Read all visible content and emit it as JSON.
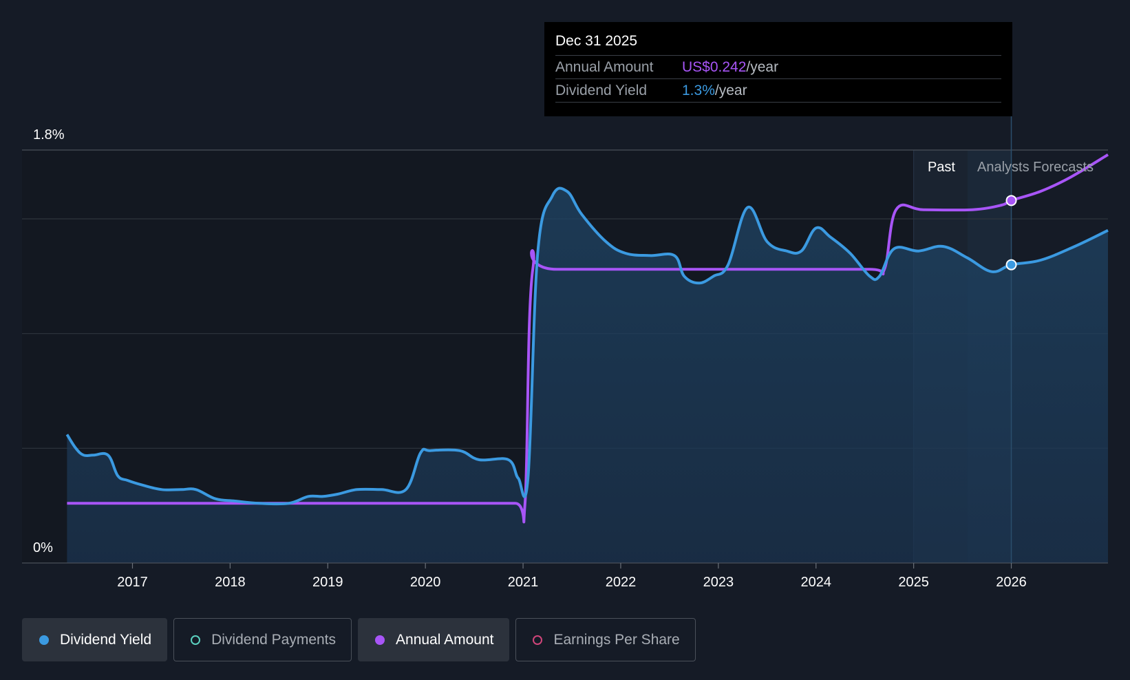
{
  "tooltip": {
    "date": "Dec 31 2025",
    "rows": [
      {
        "label": "Annual Amount",
        "value": "US$0.242",
        "unit": "/year",
        "color": "#a855f7"
      },
      {
        "label": "Dividend Yield",
        "value": "1.3%",
        "unit": "/year",
        "color": "#3b9ae1"
      }
    ]
  },
  "regions": {
    "past_label": "Past",
    "forecast_label": "Analysts Forecasts"
  },
  "legend": [
    {
      "label": "Dividend Yield",
      "color": "#3b9ae1",
      "active": true,
      "filled": true
    },
    {
      "label": "Dividend Payments",
      "color": "#5bd1c0",
      "active": false,
      "filled": false
    },
    {
      "label": "Annual Amount",
      "color": "#a855f7",
      "active": true,
      "filled": true
    },
    {
      "label": "Earnings Per Share",
      "color": "#d0457a",
      "active": false,
      "filled": false
    }
  ],
  "chart_data": {
    "type": "line",
    "y_tick_labels": [
      "1.8%",
      "0%"
    ],
    "ylim": [
      0,
      1.8
    ],
    "xlim": [
      2016.32,
      2026.99
    ],
    "x_tick_labels": [
      "2017",
      "2018",
      "2019",
      "2020",
      "2021",
      "2022",
      "2023",
      "2024",
      "2025",
      "2026"
    ],
    "x_ticks": [
      2017,
      2018,
      2019,
      2020,
      2021,
      2022,
      2023,
      2024,
      2025,
      2026
    ],
    "gridlines": [
      1.8,
      1.5,
      1.0,
      0.5
    ],
    "past_region_start": 2025.0,
    "forecast_region_start": 2025.55,
    "highlight_x": 2026.0,
    "colors": {
      "yield": "#3b9ae1",
      "annual": "#a855f7"
    },
    "series": [
      {
        "name": "Dividend Yield",
        "x": [
          2016.33,
          2016.42,
          2016.5,
          2016.6,
          2016.75,
          2016.85,
          2016.95,
          2017.1,
          2017.3,
          2017.5,
          2017.65,
          2017.85,
          2018.05,
          2018.3,
          2018.6,
          2018.8,
          2018.95,
          2019.1,
          2019.3,
          2019.55,
          2019.8,
          2019.95,
          2020.05,
          2020.35,
          2020.55,
          2020.85,
          2020.95,
          2021.05,
          2021.15,
          2021.3,
          2021.45,
          2021.6,
          2021.85,
          2022.05,
          2022.3,
          2022.55,
          2022.65,
          2022.8,
          2022.95,
          2023.1,
          2023.3,
          2023.5,
          2023.7,
          2023.85,
          2024.0,
          2024.15,
          2024.35,
          2024.55,
          2024.65,
          2024.8,
          2025.05,
          2025.3,
          2025.55,
          2025.8,
          2026.0,
          2026.3,
          2026.65,
          2026.99
        ],
        "values": [
          0.56,
          0.5,
          0.47,
          0.47,
          0.47,
          0.38,
          0.36,
          0.34,
          0.32,
          0.32,
          0.32,
          0.28,
          0.27,
          0.26,
          0.26,
          0.29,
          0.29,
          0.3,
          0.32,
          0.32,
          0.32,
          0.48,
          0.49,
          0.49,
          0.45,
          0.45,
          0.37,
          0.37,
          1.35,
          1.6,
          1.62,
          1.52,
          1.4,
          1.35,
          1.34,
          1.34,
          1.25,
          1.22,
          1.25,
          1.3,
          1.55,
          1.4,
          1.36,
          1.36,
          1.46,
          1.42,
          1.35,
          1.25,
          1.25,
          1.37,
          1.36,
          1.38,
          1.33,
          1.27,
          1.3,
          1.32,
          1.38,
          1.45
        ]
      },
      {
        "name": "Annual Amount",
        "x": [
          2016.33,
          2020.3,
          2020.92,
          2021.02,
          2021.1,
          2021.35,
          2023.5,
          2024.55,
          2024.7,
          2024.82,
          2025.1,
          2025.6,
          2025.9,
          2026.0,
          2026.3,
          2026.6,
          2026.99
        ],
        "values": [
          0.26,
          0.26,
          0.26,
          0.26,
          1.28,
          1.28,
          1.28,
          1.28,
          1.28,
          1.54,
          1.54,
          1.54,
          1.56,
          1.58,
          1.62,
          1.68,
          1.78
        ]
      }
    ]
  }
}
